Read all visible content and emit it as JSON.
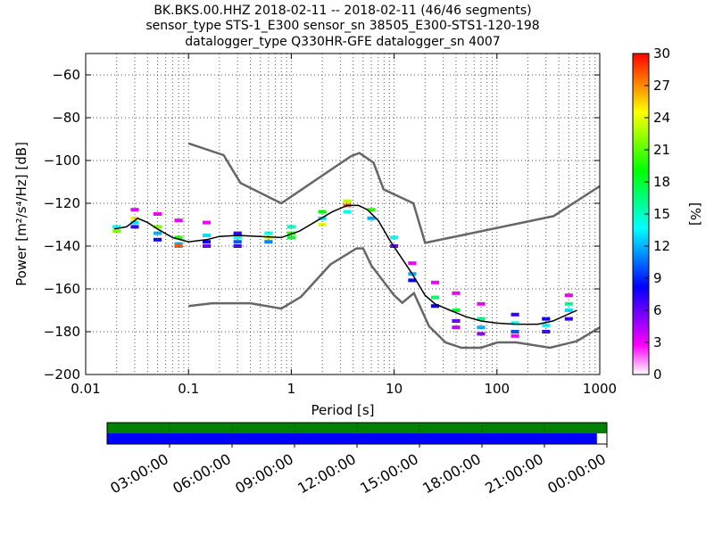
{
  "title_lines": [
    "BK.BKS.00.HHZ   2018-02-11 -- 2018-02-11  (46/46 segments)",
    "sensor_type STS-1_E300 sensor_sn 38505_E300-STS1-120-198",
    "datalogger_type Q330HR-GFE datalogger_sn 4007"
  ],
  "colors": {
    "model_curve": "#666666",
    "mean_curve": "#000000",
    "grid": "#555555",
    "coverage_top": "#008000",
    "coverage_bottom": "#0000ff",
    "colormap": [
      "#ffffff",
      "#ff00ff",
      "#8000ff",
      "#0000ff",
      "#0080ff",
      "#00ffff",
      "#00ff80",
      "#00ff00",
      "#80ff00",
      "#ffff00",
      "#ff8000",
      "#ff0000"
    ]
  },
  "chart_data": [
    {
      "type": "heatmap",
      "title": "BK.BKS.00.HHZ   2018-02-11 -- 2018-02-11  (46/46 segments)",
      "xlabel": "Period [s]",
      "ylabel": "Power [m²/s⁴/Hz] [dB]",
      "x_scale": "log",
      "xlim": [
        0.01,
        1000
      ],
      "ylim": [
        -200,
        -50
      ],
      "x_ticks": [
        {
          "value": 0.01,
          "label": "0.01"
        },
        {
          "value": 0.1,
          "label": "0.1"
        },
        {
          "value": 1,
          "label": "1"
        },
        {
          "value": 10,
          "label": "10"
        },
        {
          "value": 100,
          "label": "100"
        },
        {
          "value": 1000,
          "label": "1000"
        }
      ],
      "y_ticks": [
        {
          "value": -60,
          "label": "−60"
        },
        {
          "value": -80,
          "label": "−80"
        },
        {
          "value": -100,
          "label": "−100"
        },
        {
          "value": -120,
          "label": "−120"
        },
        {
          "value": -140,
          "label": "−140"
        },
        {
          "value": -160,
          "label": "−160"
        },
        {
          "value": -180,
          "label": "−180"
        },
        {
          "value": -200,
          "label": "−200"
        }
      ],
      "grid": true,
      "colorbar": {
        "label": "[%]",
        "range": [
          0,
          30
        ],
        "ticks": [
          {
            "value": 0,
            "label": "0"
          },
          {
            "value": 3,
            "label": "3"
          },
          {
            "value": 6,
            "label": "6"
          },
          {
            "value": 9,
            "label": "9"
          },
          {
            "value": 12,
            "label": "12"
          },
          {
            "value": 15,
            "label": "15"
          },
          {
            "value": 18,
            "label": "18"
          },
          {
            "value": 21,
            "label": "21"
          },
          {
            "value": 24,
            "label": "24"
          },
          {
            "value": 27,
            "label": "27"
          },
          {
            "value": 30,
            "label": "30"
          }
        ]
      },
      "new_high_noise_model": [
        [
          0.1,
          -92
        ],
        [
          0.22,
          -97.5
        ],
        [
          0.32,
          -110.5
        ],
        [
          0.8,
          -120
        ],
        [
          3.8,
          -98
        ],
        [
          4.6,
          -96.5
        ],
        [
          6.3,
          -101
        ],
        [
          7.9,
          -113.5
        ],
        [
          15.4,
          -120
        ],
        [
          20,
          -138.5
        ],
        [
          354.8,
          -126
        ],
        [
          1000,
          -112
        ]
      ],
      "new_low_noise_model": [
        [
          0.1,
          -168
        ],
        [
          0.17,
          -166.7
        ],
        [
          0.4,
          -166.7
        ],
        [
          0.8,
          -169.2
        ],
        [
          1.24,
          -163.7
        ],
        [
          2.4,
          -148.6
        ],
        [
          4.3,
          -141.1
        ],
        [
          5,
          -141.1
        ],
        [
          6,
          -149
        ],
        [
          10,
          -163
        ],
        [
          12,
          -166.5
        ],
        [
          15.6,
          -162
        ],
        [
          21.9,
          -177.5
        ],
        [
          31.6,
          -185
        ],
        [
          45,
          -187.5
        ],
        [
          70,
          -187.5
        ],
        [
          101,
          -185
        ],
        [
          154,
          -185
        ],
        [
          328,
          -187.5
        ],
        [
          600,
          -184.4
        ],
        [
          1000,
          -178
        ]
      ],
      "mean_curve": [
        [
          0.019,
          -132
        ],
        [
          0.025,
          -131
        ],
        [
          0.032,
          -127
        ],
        [
          0.04,
          -129
        ],
        [
          0.05,
          -132
        ],
        [
          0.07,
          -136
        ],
        [
          0.1,
          -138
        ],
        [
          0.15,
          -137
        ],
        [
          0.2,
          -135.5
        ],
        [
          0.3,
          -135
        ],
        [
          0.5,
          -135.5
        ],
        [
          0.8,
          -136
        ],
        [
          1.2,
          -133
        ],
        [
          1.8,
          -128
        ],
        [
          2.5,
          -124
        ],
        [
          3.5,
          -121
        ],
        [
          4.5,
          -121
        ],
        [
          5.5,
          -123
        ],
        [
          7,
          -128
        ],
        [
          9,
          -137
        ],
        [
          12,
          -146
        ],
        [
          15,
          -153
        ],
        [
          20,
          -163
        ],
        [
          25,
          -167
        ],
        [
          35,
          -170
        ],
        [
          50,
          -173
        ],
        [
          70,
          -175
        ],
        [
          100,
          -176
        ],
        [
          150,
          -176.5
        ],
        [
          250,
          -176.5
        ],
        [
          350,
          -175
        ],
        [
          600,
          -170
        ]
      ],
      "pdf_samples": [
        {
          "period": 0.02,
          "db": -133,
          "percent": 22
        },
        {
          "period": 0.02,
          "db": -131,
          "percent": 14
        },
        {
          "period": 0.03,
          "db": -123,
          "percent": 3
        },
        {
          "period": 0.03,
          "db": -127,
          "percent": 25
        },
        {
          "period": 0.03,
          "db": -129,
          "percent": 13
        },
        {
          "period": 0.03,
          "db": -131,
          "percent": 7
        },
        {
          "period": 0.05,
          "db": -125,
          "percent": 3
        },
        {
          "period": 0.05,
          "db": -131,
          "percent": 22
        },
        {
          "period": 0.05,
          "db": -134,
          "percent": 12
        },
        {
          "period": 0.05,
          "db": -137,
          "percent": 8
        },
        {
          "period": 0.08,
          "db": -128,
          "percent": 3
        },
        {
          "period": 0.08,
          "db": -136,
          "percent": 20
        },
        {
          "period": 0.08,
          "db": -139,
          "percent": 12
        },
        {
          "period": 0.08,
          "db": -140,
          "percent": 28
        },
        {
          "period": 0.15,
          "db": -129,
          "percent": 3
        },
        {
          "period": 0.15,
          "db": -135,
          "percent": 13
        },
        {
          "period": 0.15,
          "db": -138,
          "percent": 8
        },
        {
          "period": 0.15,
          "db": -140,
          "percent": 6
        },
        {
          "period": 0.3,
          "db": -134,
          "percent": 7
        },
        {
          "period": 0.3,
          "db": -136,
          "percent": 14
        },
        {
          "period": 0.3,
          "db": -138,
          "percent": 10
        },
        {
          "period": 0.3,
          "db": -140,
          "percent": 7
        },
        {
          "period": 0.6,
          "db": -134,
          "percent": 14
        },
        {
          "period": 0.6,
          "db": -136,
          "percent": 24
        },
        {
          "period": 0.6,
          "db": -138,
          "percent": 11
        },
        {
          "period": 1,
          "db": -131,
          "percent": 15
        },
        {
          "period": 1,
          "db": -134,
          "percent": 20
        },
        {
          "period": 1,
          "db": -136,
          "percent": 18
        },
        {
          "period": 2,
          "db": -124,
          "percent": 19
        },
        {
          "period": 2,
          "db": -127,
          "percent": 13
        },
        {
          "period": 2,
          "db": -130,
          "percent": 24
        },
        {
          "period": 3.5,
          "db": -119,
          "percent": 23
        },
        {
          "period": 3.5,
          "db": -121,
          "percent": 28
        },
        {
          "period": 3.5,
          "db": -124,
          "percent": 14
        },
        {
          "period": 6,
          "db": -123,
          "percent": 20
        },
        {
          "period": 6,
          "db": -127,
          "percent": 12
        },
        {
          "period": 10,
          "db": -136,
          "percent": 14
        },
        {
          "period": 10,
          "db": -140,
          "percent": 6
        },
        {
          "period": 15,
          "db": -148,
          "percent": 3
        },
        {
          "period": 15,
          "db": -153,
          "percent": 12
        },
        {
          "period": 15,
          "db": -156,
          "percent": 8
        },
        {
          "period": 25,
          "db": -157,
          "percent": 3
        },
        {
          "period": 25,
          "db": -164,
          "percent": 17
        },
        {
          "period": 25,
          "db": -168,
          "percent": 8
        },
        {
          "period": 40,
          "db": -162,
          "percent": 3
        },
        {
          "period": 40,
          "db": -170,
          "percent": 18
        },
        {
          "period": 40,
          "db": -175,
          "percent": 6
        },
        {
          "period": 40,
          "db": -178,
          "percent": 4
        },
        {
          "period": 70,
          "db": -167,
          "percent": 3
        },
        {
          "period": 70,
          "db": -174,
          "percent": 16
        },
        {
          "period": 70,
          "db": -178,
          "percent": 12
        },
        {
          "period": 70,
          "db": -181,
          "percent": 5
        },
        {
          "period": 150,
          "db": -172,
          "percent": 7
        },
        {
          "period": 150,
          "db": -176,
          "percent": 14
        },
        {
          "period": 150,
          "db": -180,
          "percent": 10
        },
        {
          "period": 150,
          "db": -182,
          "percent": 3
        },
        {
          "period": 300,
          "db": -174,
          "percent": 8
        },
        {
          "period": 300,
          "db": -177,
          "percent": 14
        },
        {
          "period": 300,
          "db": -180,
          "percent": 7
        },
        {
          "period": 500,
          "db": -163,
          "percent": 3
        },
        {
          "period": 500,
          "db": -167,
          "percent": 16
        },
        {
          "period": 500,
          "db": -170,
          "percent": 13
        },
        {
          "period": 500,
          "db": -174,
          "percent": 7
        }
      ]
    },
    {
      "type": "timeline",
      "title": "",
      "xlabel": "",
      "ylabel": "",
      "x_ticks": [
        "03:00:00",
        "06:00:00",
        "09:00:00",
        "12:00:00",
        "15:00:00",
        "18:00:00",
        "21:00:00",
        "00:00:00"
      ],
      "rows": [
        {
          "name": "",
          "color": "#008000",
          "coverage": 1.0
        },
        {
          "name": "",
          "color": "#0000ff",
          "coverage": 0.98
        }
      ]
    }
  ]
}
